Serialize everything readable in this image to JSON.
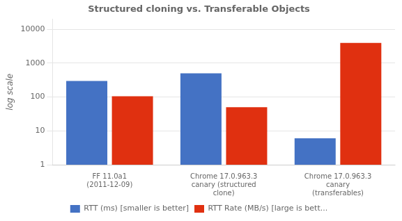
{
  "chart_data": {
    "type": "bar",
    "title": "Structured cloning vs. Transferable Objects",
    "categories": [
      "FF 11.0a1\n(2011-12-09)",
      "Chrome 17.0.963.3\ncanary (structured\nclone)",
      "Chrome 17.0.963.3\ncanary\n(transferables)"
    ],
    "series": [
      {
        "name": "RTT (ms) [smaller is better]",
        "color": "#4472c4",
        "values": [
          300,
          500,
          6
        ]
      },
      {
        "name": "RTT Rate (MB/s) [large is bett...",
        "color": "#e03010",
        "values": [
          105,
          50,
          4000
        ]
      }
    ],
    "ylabel": "log scale",
    "ylim": [
      1,
      20000
    ],
    "yticks": [
      1,
      10,
      100,
      1000,
      10000
    ],
    "log": "y",
    "grid": true,
    "legend": "bottom"
  }
}
